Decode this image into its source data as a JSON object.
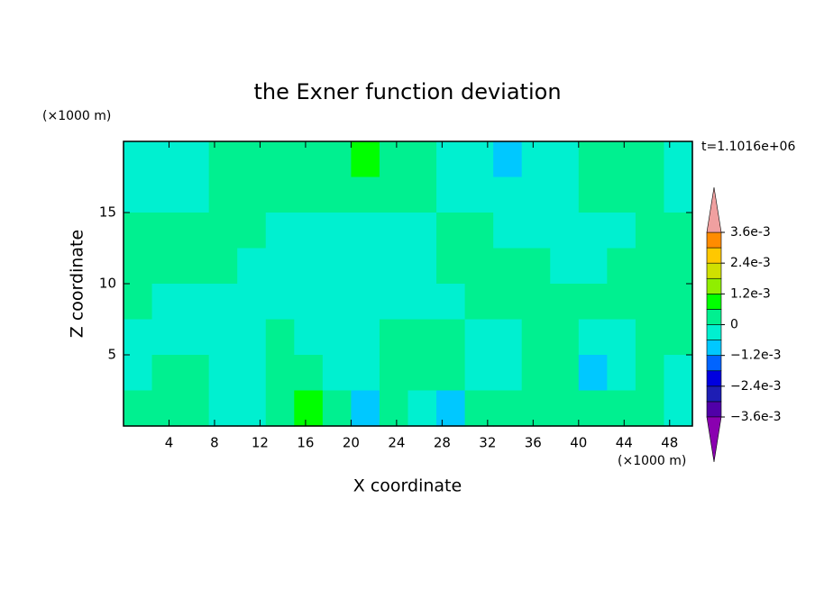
{
  "chart_data": {
    "type": "contour",
    "title": "the Exner function deviation",
    "xlabel": "X coordinate",
    "ylabel": "Z coordinate",
    "x_unit": "(×1000 m)",
    "y_unit": "(×1000 m)",
    "annotation": "t=1.1016e+06",
    "xlim": [
      0,
      50
    ],
    "ylim": [
      0,
      20
    ],
    "xticks": [
      4,
      8,
      12,
      16,
      20,
      24,
      28,
      32,
      36,
      40,
      44,
      48
    ],
    "yticks": [
      5,
      10,
      15
    ],
    "levels": [
      -0.0036,
      -0.003,
      -0.0024,
      -0.0018,
      -0.0012,
      -0.0006,
      0,
      0.0006,
      0.0012,
      0.0018,
      0.0024,
      0.003,
      0.0036
    ],
    "colors": [
      "#8a00b0",
      "#5000a8",
      "#1e1eb4",
      "#0000e0",
      "#0064ff",
      "#00c8ff",
      "#00f0d0",
      "#00f090",
      "#00ff00",
      "#90ee00",
      "#d0e000",
      "#ffc800",
      "#ff8c00",
      "#f0a0a0"
    ],
    "colorbar_ticks": [
      {
        "value": 0.0036,
        "label": "3.6e-3"
      },
      {
        "value": 0.0024,
        "label": "2.4e-3"
      },
      {
        "value": 0.0012,
        "label": "1.2e-3"
      },
      0,
      {
        "value": -0.0012,
        "label": "−1.2e-3"
      },
      {
        "value": -0.0024,
        "label": "−2.4e-3"
      },
      {
        "value": -0.0036,
        "label": "−3.6e-3"
      }
    ],
    "z": [
      [
        -0.0003,
        -0.0003,
        -0.0003,
        0.0003,
        0.0003,
        0.0003,
        0.0003,
        0.0003,
        0.0009,
        0.0003,
        0.0003,
        -0.0003,
        -0.0003,
        -0.0009,
        -0.0003,
        -0.0003,
        0.0003,
        0.0003,
        0.0003,
        -0.0003
      ],
      [
        -0.0003,
        -0.0003,
        -0.0003,
        0.0003,
        0.0003,
        0.0003,
        0.0003,
        0.0003,
        0.0003,
        0.0003,
        0.0003,
        -0.0003,
        -0.0003,
        -0.0003,
        -0.0003,
        -0.0003,
        0.0003,
        0.0003,
        0.0003,
        -0.0003
      ],
      [
        0.0003,
        0.0003,
        0.0003,
        0.0003,
        0.0003,
        -0.0003,
        -0.0003,
        -0.0003,
        -0.0003,
        -0.0003,
        -0.0003,
        0.0003,
        0.0003,
        -0.0003,
        -0.0003,
        -0.0003,
        -0.0003,
        -0.0003,
        0.0003,
        0.0003
      ],
      [
        0.0003,
        0.0003,
        0.0003,
        0.0003,
        -0.0003,
        -0.0003,
        -0.0003,
        -0.0003,
        -0.0003,
        -0.0003,
        -0.0003,
        0.0003,
        0.0003,
        0.0003,
        0.0003,
        -0.0003,
        -0.0003,
        0.0003,
        0.0003,
        0.0003
      ],
      [
        0.0003,
        -0.0003,
        -0.0003,
        -0.0003,
        -0.0003,
        -0.0003,
        -0.0003,
        -0.0003,
        -0.0003,
        -0.0003,
        -0.0003,
        -0.0003,
        0.0003,
        0.0003,
        0.0003,
        0.0003,
        0.0003,
        0.0003,
        0.0003,
        0.0003
      ],
      [
        -0.0003,
        -0.0003,
        -0.0003,
        -0.0003,
        -0.0003,
        0.0003,
        -0.0003,
        -0.0003,
        -0.0003,
        0.0003,
        0.0003,
        0.0003,
        -0.0003,
        -0.0003,
        0.0003,
        0.0003,
        -0.0003,
        -0.0003,
        0.0003,
        0.0003
      ],
      [
        -0.0003,
        0.0003,
        0.0003,
        -0.0003,
        -0.0003,
        0.0003,
        0.0003,
        -0.0003,
        -0.0003,
        0.0003,
        0.0003,
        0.0003,
        -0.0003,
        -0.0003,
        0.0003,
        0.0003,
        -0.0009,
        -0.0003,
        0.0003,
        -0.0003
      ],
      [
        0.0003,
        0.0003,
        0.0003,
        -0.0003,
        -0.0003,
        0.0003,
        0.0009,
        0.0003,
        -0.0009,
        0.0003,
        -0.0003,
        -0.0009,
        0.0003,
        0.0003,
        0.0003,
        0.0003,
        0.0003,
        0.0003,
        0.0003,
        -0.0003
      ]
    ]
  }
}
